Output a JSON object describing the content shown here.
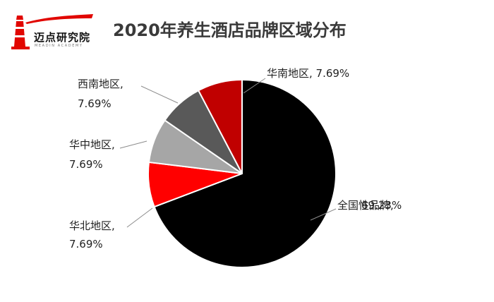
{
  "logo": {
    "name": "迈点研究院",
    "sub": "MEADIN ACADEMY"
  },
  "colors": {
    "accent": "#e10600",
    "title": "#3a3a3a"
  },
  "chart_data": {
    "type": "pie",
    "title": "2020年养生酒店品牌区域分布",
    "slices": [
      {
        "name": "全国性品牌",
        "value": 69.23,
        "label": "全国性品牌,",
        "pct": "69.23%",
        "color": "#000000"
      },
      {
        "name": "华北地区",
        "value": 7.69,
        "label": "华北地区,",
        "pct": "7.69%",
        "color": "#ff0000"
      },
      {
        "name": "华中地区",
        "value": 7.69,
        "label": "华中地区,",
        "pct": "7.69%",
        "color": "#a6a6a6"
      },
      {
        "name": "西南地区",
        "value": 7.69,
        "label": "西南地区,",
        "pct": "7.69%",
        "color": "#595959"
      },
      {
        "name": "华南地区",
        "value": 7.69,
        "label": "华南地区, 7.69%",
        "pct": "",
        "color": "#c00000"
      }
    ],
    "legend": "none"
  }
}
